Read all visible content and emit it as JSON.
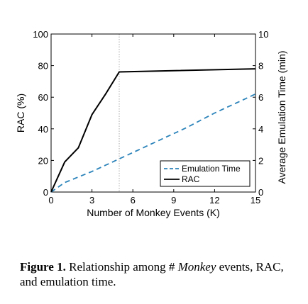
{
  "chart_data": {
    "type": "line",
    "xlabel": "Number of Monkey Events (K)",
    "ylabel": "RAC (%)",
    "ylabel_right": "Average Emulation Time (min)",
    "xlim": [
      0,
      15
    ],
    "ylim": [
      0,
      100
    ],
    "ylim_right": [
      0,
      10
    ],
    "x_ticks": [
      0,
      3,
      6,
      9,
      12,
      15
    ],
    "y_ticks": [
      0,
      20,
      40,
      60,
      80,
      100
    ],
    "y_ticks_right": [
      0,
      2,
      4,
      6,
      8,
      10
    ],
    "vline_x": 5,
    "grid": false,
    "legend_position": "lower-right",
    "series": [
      {
        "name": "Emulation Time",
        "axis": "right",
        "style": "dashed",
        "color": "#2b83ba",
        "x": [
          0,
          1,
          2,
          3,
          4,
          5,
          6,
          7,
          8,
          9,
          10,
          11,
          12,
          13,
          14,
          15
        ],
        "values": [
          0.0,
          0.6,
          0.95,
          1.3,
          1.7,
          2.1,
          2.5,
          2.9,
          3.3,
          3.7,
          4.1,
          4.55,
          5.0,
          5.4,
          5.8,
          6.2
        ]
      },
      {
        "name": "RAC",
        "axis": "left",
        "style": "solid",
        "color": "#000000",
        "x": [
          0,
          1,
          2,
          3,
          4,
          5,
          15
        ],
        "values": [
          0,
          19,
          28,
          49,
          62,
          76,
          78
        ]
      }
    ]
  },
  "caption": {
    "label": "Figure 1.",
    "text_before": " Relationship among # ",
    "italic": "Monkey",
    "text_after": " events, RAC, and emulation time."
  }
}
